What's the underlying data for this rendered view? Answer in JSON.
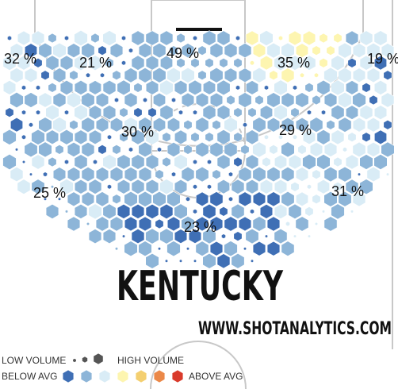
{
  "team_name": "KENTUCKY",
  "website": "WWW.SHOTANALYTICS.COM",
  "zones": [
    {
      "id": "left-corner-3",
      "label": "32 %"
    },
    {
      "id": "left-wing-3-upper",
      "label": "21 %"
    },
    {
      "id": "top-of-key-3",
      "label": "49 %"
    },
    {
      "id": "right-wing-3-upper",
      "label": "35 %"
    },
    {
      "id": "right-corner-3",
      "label": "19 %"
    },
    {
      "id": "left-midrange",
      "label": "30 %"
    },
    {
      "id": "right-midrange",
      "label": "29 %"
    },
    {
      "id": "left-baseline",
      "label": "25 %"
    },
    {
      "id": "right-baseline",
      "label": "31 %"
    },
    {
      "id": "paint",
      "label": "23 %"
    }
  ],
  "legend": {
    "volume_low": "LOW VOLUME",
    "volume_high": "HIGH VOLUME",
    "below_avg": "BELOW AVG",
    "above_avg": "ABOVE AVG",
    "scale_colors": [
      "#3f6fb5",
      "#8db5d8",
      "#d9ecf6",
      "#fdf5b0",
      "#f4cf70",
      "#eb8848",
      "#d93a2b"
    ],
    "volume_color": "#555555"
  }
}
